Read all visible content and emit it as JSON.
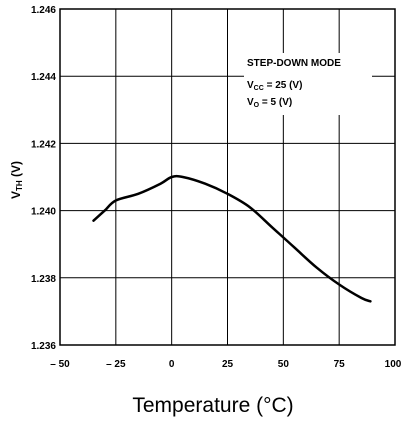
{
  "chart_data": {
    "type": "line",
    "title": "",
    "xlabel": "Temperature (°C)",
    "ylabel": {
      "main": "V",
      "sub": "TH",
      "unit": " (V)"
    },
    "xlim": [
      -50,
      100
    ],
    "ylim": [
      1.236,
      1.246
    ],
    "xticks": [
      -50,
      -25,
      0,
      25,
      50,
      75,
      100
    ],
    "yticks": [
      1.236,
      1.238,
      1.24,
      1.242,
      1.244,
      1.246
    ],
    "xtick_labels": [
      "– 50",
      "– 25",
      "0",
      "25",
      "50",
      "75",
      "100"
    ],
    "ytick_labels": [
      "1.236",
      "1.238",
      "1.240",
      "1.242",
      "1.244",
      "1.246"
    ],
    "grid": true,
    "annotations": {
      "mode": "STEP-DOWN MODE",
      "vcc": {
        "main": "V",
        "sub": "CC",
        "rest": " = 25 (V)"
      },
      "vo": {
        "main": "V",
        "sub": "O",
        "rest": " = 5 (V)"
      }
    },
    "series": [
      {
        "x": [
          -35,
          -30,
          -25,
          -15,
          -5,
          0,
          5,
          15,
          25,
          35,
          45,
          55,
          65,
          75,
          85,
          89
        ],
        "y": [
          1.2397,
          1.24,
          1.2403,
          1.2405,
          1.2408,
          1.241,
          1.241,
          1.2408,
          1.2405,
          1.2401,
          1.2395,
          1.2389,
          1.2383,
          1.2378,
          1.2374,
          1.2373
        ]
      }
    ]
  }
}
